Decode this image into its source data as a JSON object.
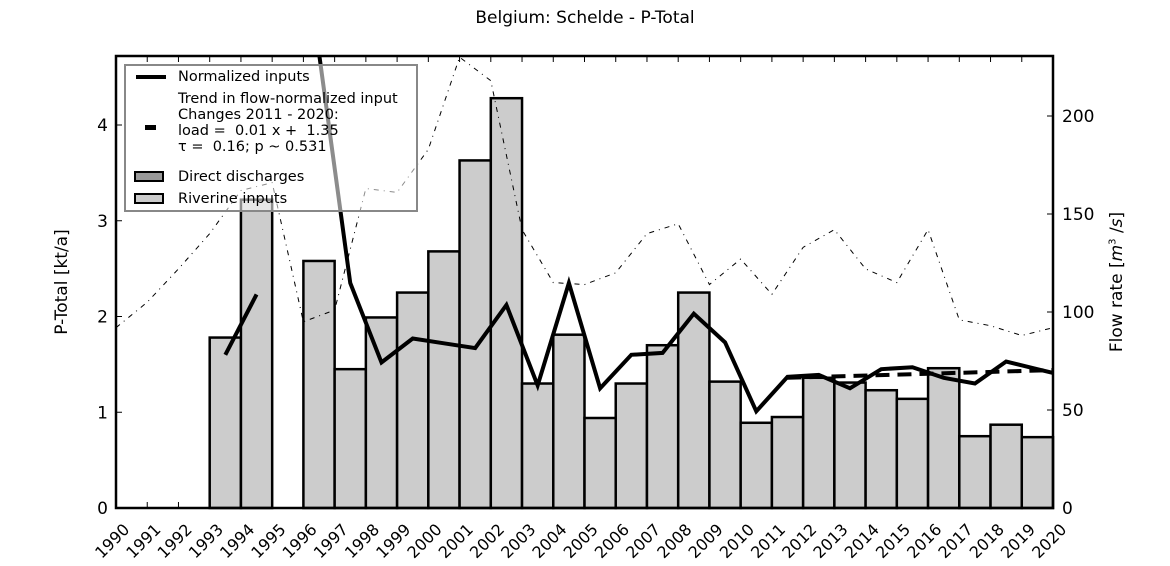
{
  "chart_data": {
    "type": "bar",
    "title": "Belgium: Schelde - P-Total",
    "xlabel": "",
    "ylabel": "P-Total [kt/a]",
    "ylabel_right": "Flow rate [m³ /s]",
    "ylim": [
      0,
      4.7
    ],
    "ylim_right": [
      0,
      230
    ],
    "yticks": [
      0,
      1,
      2,
      3,
      4
    ],
    "yticks_right": [
      0,
      50,
      100,
      150,
      200
    ],
    "categories": [
      "1990",
      "1991",
      "1992",
      "1993",
      "1994",
      "1995",
      "1996",
      "1997",
      "1998",
      "1999",
      "2000",
      "2001",
      "2002",
      "2003",
      "2004",
      "2005",
      "2006",
      "2007",
      "2008",
      "2009",
      "2010",
      "2011",
      "2012",
      "2013",
      "2014",
      "2015",
      "2016",
      "2017",
      "2018",
      "2019",
      "2020"
    ],
    "series": [
      {
        "name": "Riverine inputs",
        "type": "bar",
        "color": "#cccccc",
        "values": [
          null,
          null,
          null,
          1.78,
          3.22,
          null,
          2.58,
          1.45,
          1.99,
          2.25,
          2.68,
          3.63,
          4.28,
          1.3,
          1.81,
          0.94,
          1.3,
          1.7,
          2.25,
          1.32,
          0.89,
          0.95,
          1.36,
          1.31,
          1.23,
          1.14,
          1.46,
          0.75,
          0.87,
          0.74,
          null
        ]
      },
      {
        "name": "Direct discharges",
        "type": "bar",
        "color": "#999999",
        "values": [
          null,
          null,
          null,
          0,
          0,
          null,
          0,
          0,
          0,
          0,
          0,
          0,
          0,
          0,
          0,
          0,
          0,
          0,
          0,
          0,
          0,
          0,
          0,
          0,
          0,
          0,
          0,
          0,
          0,
          0,
          null
        ]
      },
      {
        "name": "Normalized inputs",
        "type": "line",
        "color": "#000000",
        "values": [
          null,
          null,
          null,
          1.6,
          2.23,
          null,
          4.75,
          2.35,
          1.52,
          1.77,
          1.72,
          1.67,
          2.12,
          1.28,
          2.35,
          1.25,
          1.6,
          1.62,
          2.03,
          1.73,
          1.01,
          1.37,
          1.39,
          1.25,
          1.45,
          1.47,
          1.36,
          1.3,
          1.53,
          1.45,
          1.41
        ]
      },
      {
        "name": "Trend in flow-normalized input",
        "type": "line-dashed",
        "color": "#000000",
        "period": "2011 - 2020",
        "equation": "load = 0.01 x + 1.35",
        "tau": 0.16,
        "p": 0.531,
        "x_start": 2011.5,
        "x_end": 2020,
        "y_start": 1.36,
        "y_end": 1.44
      },
      {
        "name": "Flow rate",
        "type": "line-dashdot",
        "axis": "right",
        "color": "#000000",
        "values": [
          92,
          105,
          122,
          140,
          162,
          166,
          95,
          101,
          163,
          161,
          183,
          230,
          218,
          142,
          115,
          114,
          120,
          140,
          145,
          114,
          127,
          109,
          133,
          142,
          122,
          115,
          142,
          96,
          93,
          88,
          92
        ]
      }
    ],
    "legend": {
      "position": "upper left",
      "entries": [
        {
          "label": "Normalized inputs",
          "style": "line"
        },
        {
          "label": "Trend in flow-normalized input\nChanges 2011 - 2020:\nload =  0.01 x +  1.35\nτ =  0.16; p ~ 0.531",
          "style": "dash"
        },
        {
          "label": "Direct discharges",
          "style": "box",
          "color": "#999999"
        },
        {
          "label": "Riverine inputs",
          "style": "box",
          "color": "#cccccc"
        }
      ]
    },
    "grid": false
  },
  "labels": {
    "title": "Belgium: Schelde - P-Total",
    "ylabel_left": "P-Total [kt/a]",
    "ylabel_right": "Flow rate [m³ /s]",
    "legend_normalized": "Normalized inputs",
    "legend_trend": "Trend in flow-normalized input\nChanges 2011 - 2020:\nload =  0.01 x +  1.35\nτ =  0.16; p ~ 0.531",
    "legend_direct": "Direct discharges",
    "legend_riverine": "Riverine inputs"
  },
  "colors": {
    "riverine": "#cccccc",
    "direct": "#999999",
    "legend_border": "#888888",
    "line": "#000000"
  }
}
